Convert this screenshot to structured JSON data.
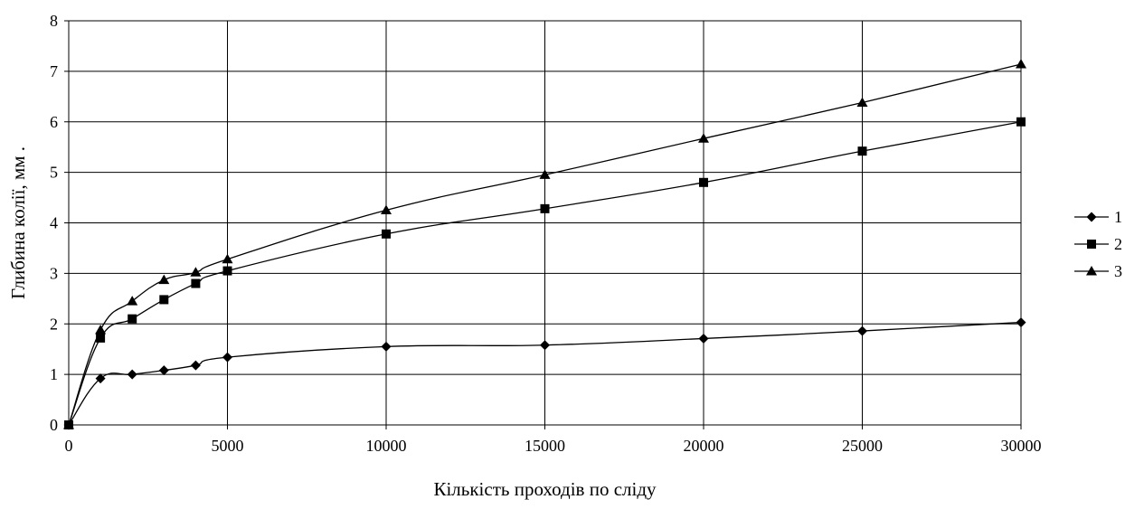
{
  "chart_data": {
    "type": "line",
    "title": "",
    "xlabel": "Кількість проходів по сліду",
    "ylabel": "Глибина колії, мм .",
    "xlim": [
      0,
      30000
    ],
    "ylim": [
      0,
      8
    ],
    "x_ticks": [
      0,
      5000,
      10000,
      15000,
      20000,
      25000,
      30000
    ],
    "y_ticks": [
      0,
      1,
      2,
      3,
      4,
      5,
      6,
      7,
      8
    ],
    "grid": true,
    "legend_position": "right",
    "x": [
      0,
      1000,
      2000,
      3000,
      4000,
      5000,
      10000,
      15000,
      20000,
      25000,
      30000
    ],
    "series": [
      {
        "name": "1",
        "marker": "diamond",
        "color": "#000000",
        "values": [
          0,
          0.92,
          1.0,
          1.08,
          1.18,
          1.34,
          1.55,
          1.58,
          1.71,
          1.86,
          2.03
        ]
      },
      {
        "name": "2",
        "marker": "square",
        "color": "#000000",
        "values": [
          0,
          1.72,
          2.1,
          2.48,
          2.8,
          3.05,
          3.78,
          4.28,
          4.8,
          5.42,
          6.0
        ]
      },
      {
        "name": "3",
        "marker": "triangle",
        "color": "#000000",
        "values": [
          0,
          1.88,
          2.45,
          2.87,
          3.02,
          3.28,
          4.25,
          4.95,
          5.67,
          6.38,
          7.14
        ]
      }
    ]
  }
}
